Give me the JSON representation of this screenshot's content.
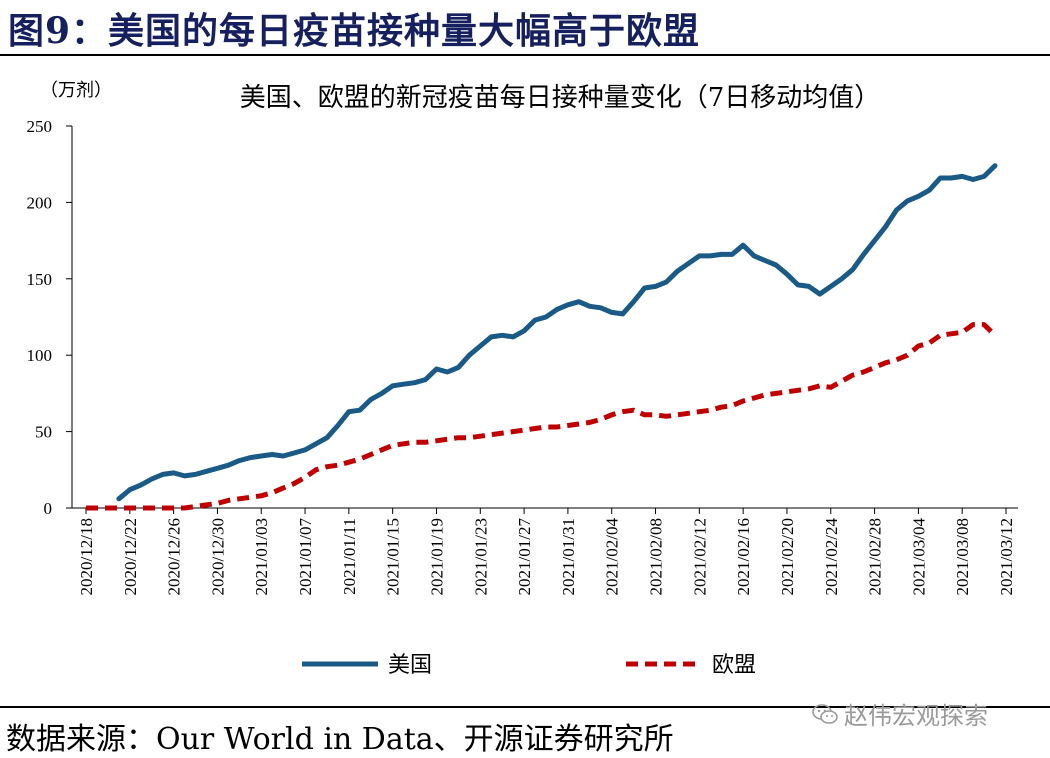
{
  "figure": {
    "title": "图9：美国的每日疫苗接种量大幅高于欧盟",
    "source": "数据来源：Our World in Data、开源证券研究所",
    "watermark": "赵伟宏观探索",
    "watermark_icon": "wechat-icon"
  },
  "chart_data": {
    "type": "line",
    "title": "美国、欧盟的新冠疫苗每日接种量变化（7日移动均值）",
    "ylabel": "（万剂）",
    "xlabel": "",
    "ylim": [
      0,
      250
    ],
    "yticks": [
      0,
      50,
      100,
      150,
      200,
      250
    ],
    "grid": false,
    "legend_position": "bottom",
    "x_dates": [
      "2020/12/18",
      "2020/12/19",
      "2020/12/20",
      "2020/12/21",
      "2020/12/22",
      "2020/12/23",
      "2020/12/24",
      "2020/12/25",
      "2020/12/26",
      "2020/12/27",
      "2020/12/28",
      "2020/12/29",
      "2020/12/30",
      "2020/12/31",
      "2021/01/01",
      "2021/01/02",
      "2021/01/03",
      "2021/01/04",
      "2021/01/05",
      "2021/01/06",
      "2021/01/07",
      "2021/01/08",
      "2021/01/09",
      "2021/01/10",
      "2021/01/11",
      "2021/01/12",
      "2021/01/13",
      "2021/01/14",
      "2021/01/15",
      "2021/01/16",
      "2021/01/17",
      "2021/01/18",
      "2021/01/19",
      "2021/01/20",
      "2021/01/21",
      "2021/01/22",
      "2021/01/23",
      "2021/01/24",
      "2021/01/25",
      "2021/01/26",
      "2021/01/27",
      "2021/01/28",
      "2021/01/29",
      "2021/01/30",
      "2021/01/31",
      "2021/02/01",
      "2021/02/02",
      "2021/02/03",
      "2021/02/04",
      "2021/02/05",
      "2021/02/06",
      "2021/02/07",
      "2021/02/08",
      "2021/02/09",
      "2021/02/10",
      "2021/02/11",
      "2021/02/12",
      "2021/02/13",
      "2021/02/14",
      "2021/02/15",
      "2021/02/16",
      "2021/02/17",
      "2021/02/18",
      "2021/02/19",
      "2021/02/20",
      "2021/02/21",
      "2021/02/22",
      "2021/02/23",
      "2021/02/24",
      "2021/02/25",
      "2021/02/26",
      "2021/02/27",
      "2021/02/28",
      "2021/03/01",
      "2021/03/02",
      "2021/03/03",
      "2021/03/04",
      "2021/03/05",
      "2021/03/06",
      "2021/03/07",
      "2021/03/08",
      "2021/03/09",
      "2021/03/10",
      "2021/03/11",
      "2021/03/12"
    ],
    "tick_labels": [
      "2020/12/18",
      "2020/12/22",
      "2020/12/26",
      "2020/12/30",
      "2021/01/03",
      "2021/01/07",
      "2021/01/11",
      "2021/01/15",
      "2021/01/19",
      "2021/01/23",
      "2021/01/27",
      "2021/01/31",
      "2021/02/04",
      "2021/02/08",
      "2021/02/12",
      "2021/02/16",
      "2021/02/20",
      "2021/02/24",
      "2021/02/28",
      "2021/03/04",
      "2021/03/08",
      "2021/03/12"
    ],
    "series": [
      {
        "name": "美国",
        "color": "#1a5a87",
        "style": "solid",
        "start_index": 3,
        "values": [
          6,
          12,
          15,
          19,
          22,
          23,
          21,
          22,
          24,
          26,
          28,
          31,
          33,
          34,
          35,
          34,
          36,
          38,
          42,
          46,
          54,
          63,
          64,
          71,
          75,
          80,
          81,
          82,
          84,
          91,
          89,
          92,
          100,
          106,
          112,
          113,
          112,
          116,
          123,
          125,
          130,
          133,
          135,
          132,
          131,
          128,
          127,
          135,
          144,
          145,
          148,
          155,
          160,
          165,
          165,
          166,
          166,
          172,
          165,
          162,
          159,
          153,
          146,
          145,
          140,
          145,
          150,
          156,
          166,
          175,
          184,
          195,
          201,
          204,
          208,
          216,
          216,
          217,
          215,
          217,
          224
        ]
      },
      {
        "name": "欧盟",
        "color": "#c00000",
        "style": "dashed",
        "start_index": 0,
        "values": [
          0,
          0,
          0,
          0,
          0,
          0,
          0,
          0,
          0,
          0,
          1,
          2,
          3,
          5,
          6,
          7,
          8,
          10,
          13,
          16,
          20,
          25,
          27,
          28,
          30,
          32,
          35,
          38,
          41,
          42,
          43,
          43,
          44,
          45,
          46,
          46,
          47,
          48,
          49,
          50,
          51,
          52,
          53,
          53,
          54,
          55,
          56,
          58,
          61,
          63,
          64,
          61,
          61,
          60,
          61,
          62,
          63,
          64,
          66,
          67,
          70,
          72,
          74,
          75,
          76,
          77,
          78,
          80,
          79,
          83,
          87,
          89,
          92,
          95,
          97,
          100,
          106,
          108,
          113,
          114,
          115,
          120,
          120,
          113
        ]
      }
    ]
  }
}
